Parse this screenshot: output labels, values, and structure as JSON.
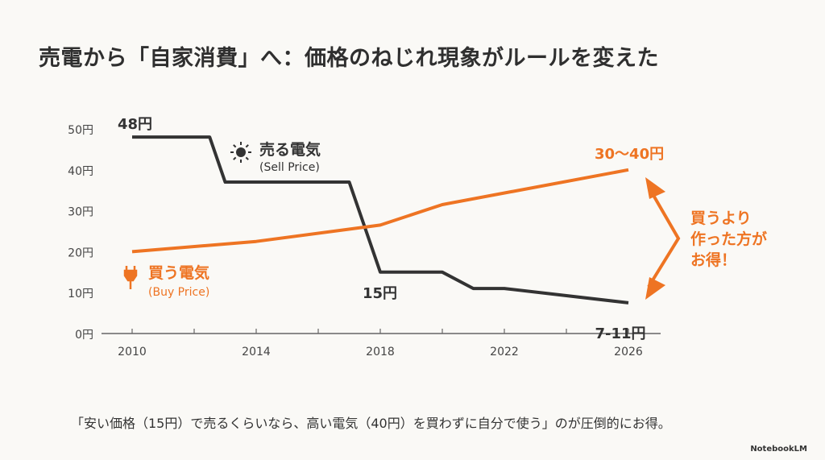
{
  "title": "売電から「自家消費」へ：価格のねじれ現象がルールを変えた",
  "caption": "「安い価格（15円）で売るくらいなら、高い電気（40円）を買わずに自分で使う」のが圧倒的にお得。",
  "brand": "NotebookLM",
  "colors": {
    "sell": "#333333",
    "buy": "#ee7423",
    "axis": "#666666"
  },
  "chart_data": {
    "type": "line",
    "xlim": [
      2010,
      2026
    ],
    "ylim": [
      0,
      50
    ],
    "x_ticks": [
      2010,
      2014,
      2018,
      2022,
      2026
    ],
    "x_tick_labels": [
      "2010",
      "2014",
      "2018",
      "2022",
      "2026"
    ],
    "y_ticks": [
      0,
      10,
      20,
      30,
      40,
      50
    ],
    "y_tick_labels": [
      "0円",
      "10円",
      "20円",
      "30円",
      "40円",
      "50円"
    ],
    "grid": false,
    "series": [
      {
        "name": "売る電気",
        "subname": "(Sell Price)",
        "icon": "sun-icon",
        "color": "#333333",
        "x": [
          2010,
          2012.5,
          2013,
          2017,
          2018,
          2020,
          2021,
          2022,
          2026
        ],
        "y": [
          48,
          48,
          37,
          37,
          15,
          15,
          11,
          11,
          7.5
        ]
      },
      {
        "name": "買う電気",
        "subname": "(Buy Price)",
        "icon": "plug-icon",
        "color": "#ee7423",
        "x": [
          2010,
          2014,
          2018,
          2020,
          2026
        ],
        "y": [
          20,
          22.5,
          26.5,
          31.5,
          40
        ]
      }
    ],
    "annotations": [
      {
        "text": "48円",
        "x": 2010,
        "y": 48,
        "color": "#333333"
      },
      {
        "text": "15円",
        "x": 2018,
        "y": 15,
        "color": "#333333"
      },
      {
        "text": "7-11円",
        "x": 2026,
        "y": 7.5,
        "color": "#333333"
      },
      {
        "text": "30〜40円",
        "x": 2026,
        "y": 40,
        "color": "#ee7423"
      }
    ],
    "callout": [
      "買うより",
      "作った方が",
      "お得！"
    ]
  }
}
